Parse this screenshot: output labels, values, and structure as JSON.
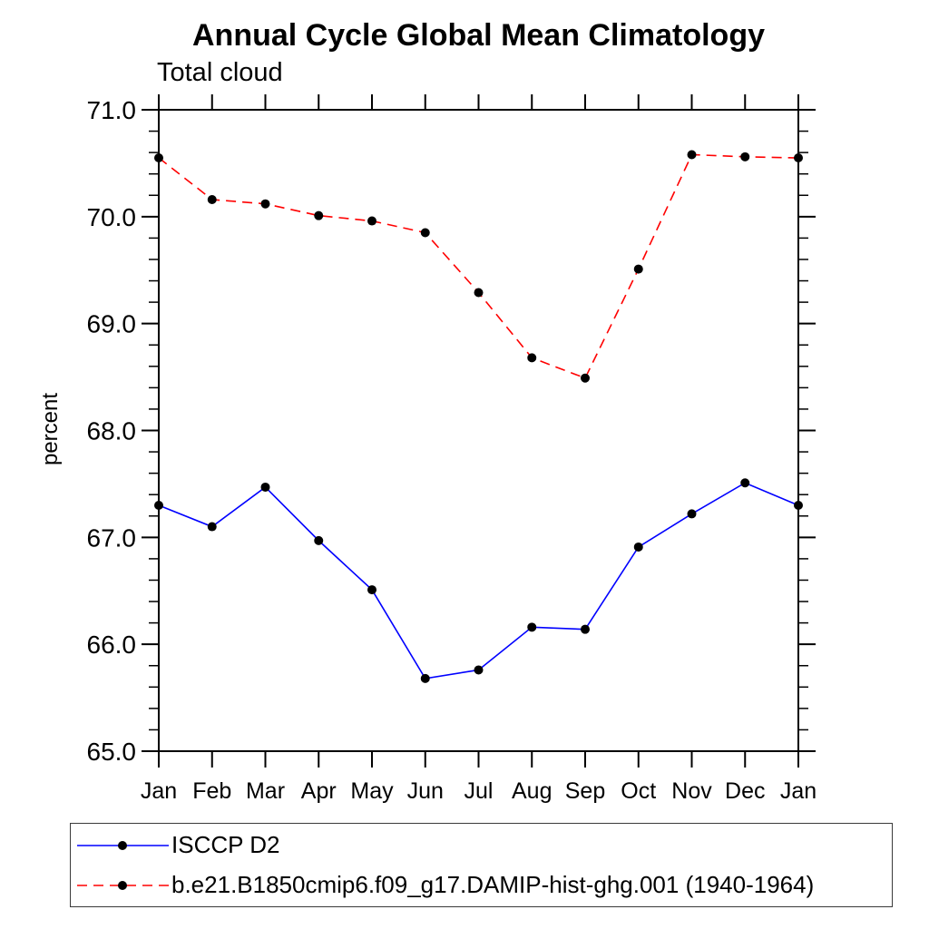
{
  "title": "Annual Cycle Global Mean Climatology",
  "subtitle": "Total cloud",
  "chart_data": {
    "type": "line",
    "x": [
      "Jan",
      "Feb",
      "Mar",
      "Apr",
      "May",
      "Jun",
      "Jul",
      "Aug",
      "Sep",
      "Oct",
      "Nov",
      "Dec",
      "Jan"
    ],
    "xlabel": "",
    "ylabel": "percent",
    "ylim": [
      65.0,
      71.0
    ],
    "ytick_major_step": 1.0,
    "ytick_minor_step": 0.2,
    "ytick_labels": [
      "65.0",
      "66.0",
      "67.0",
      "68.0",
      "69.0",
      "70.0",
      "71.0"
    ],
    "grid": false,
    "legend_position": "bottom-left-box",
    "series": [
      {
        "name": "ISCCP D2",
        "color": "#0000ff",
        "line_style": "solid",
        "marker": "filled-circle",
        "marker_color": "#000000",
        "values": [
          67.3,
          67.1,
          67.47,
          66.97,
          66.51,
          65.68,
          65.76,
          66.16,
          66.14,
          66.91,
          67.22,
          67.51,
          67.3
        ]
      },
      {
        "name": "b.e21.B1850cmip6.f09_g17.DAMIP-hist-ghg.001 (1940-1964)",
        "color": "#ff0000",
        "line_style": "dashed",
        "marker": "filled-circle",
        "marker_color": "#000000",
        "values": [
          70.55,
          70.16,
          70.12,
          70.01,
          69.96,
          69.85,
          69.29,
          68.68,
          68.49,
          69.51,
          70.58,
          70.56,
          70.55
        ]
      }
    ]
  },
  "colors": {
    "axis": "#000000",
    "text": "#000000",
    "legend_border": "#3a3a3a",
    "background": "#ffffff"
  }
}
